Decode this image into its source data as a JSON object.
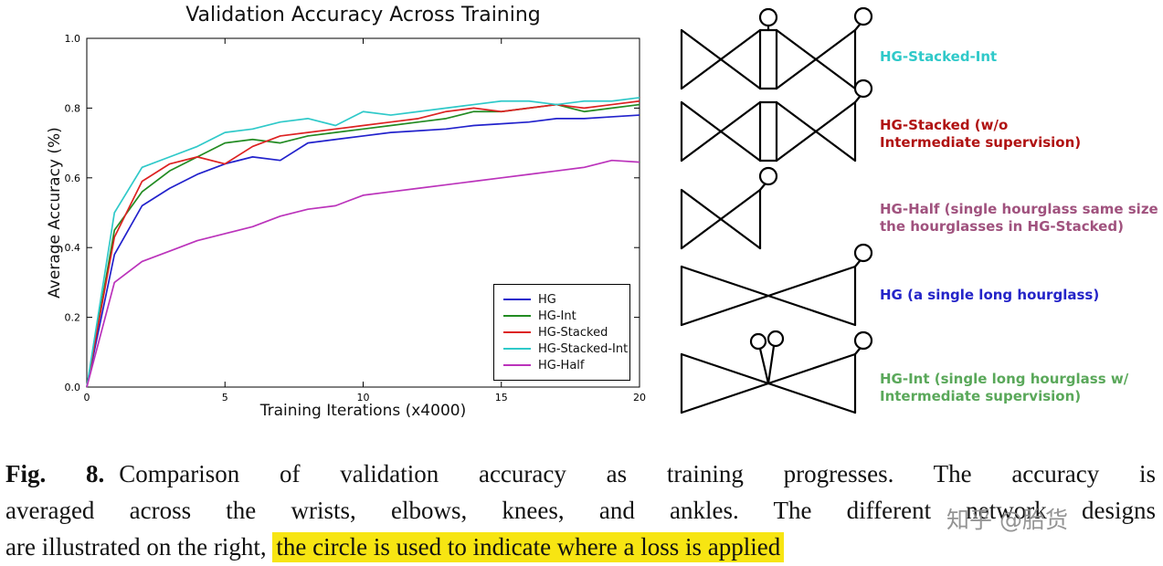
{
  "chart_data": {
    "type": "line",
    "title": "Validation Accuracy Across Training",
    "xlabel": "Training Iterations (x4000)",
    "ylabel": "Average Accuracy (%)",
    "xlim": [
      0,
      20
    ],
    "ylim": [
      0.0,
      1.0
    ],
    "xticks": [
      "0",
      "5",
      "10",
      "15",
      "20"
    ],
    "yticks": [
      "0.0",
      "0.2",
      "0.4",
      "0.6",
      "0.8",
      "1.0"
    ],
    "grid": false,
    "legend_position": "lower right",
    "x": [
      0,
      1,
      2,
      3,
      4,
      5,
      6,
      7,
      8,
      9,
      10,
      11,
      12,
      13,
      14,
      15,
      16,
      17,
      18,
      19,
      20
    ],
    "series": [
      {
        "name": "HG",
        "color": "#2222cc",
        "values": [
          0,
          0.38,
          0.52,
          0.57,
          0.61,
          0.64,
          0.66,
          0.65,
          0.7,
          0.71,
          0.72,
          0.73,
          0.735,
          0.74,
          0.75,
          0.755,
          0.76,
          0.77,
          0.77,
          0.775,
          0.78
        ]
      },
      {
        "name": "HG-Int",
        "color": "#228b22",
        "values": [
          0,
          0.45,
          0.56,
          0.62,
          0.66,
          0.7,
          0.71,
          0.7,
          0.72,
          0.73,
          0.74,
          0.75,
          0.76,
          0.77,
          0.79,
          0.79,
          0.8,
          0.81,
          0.79,
          0.8,
          0.81
        ]
      },
      {
        "name": "HG-Stacked",
        "color": "#dd2222",
        "values": [
          0,
          0.43,
          0.59,
          0.64,
          0.66,
          0.64,
          0.69,
          0.72,
          0.73,
          0.74,
          0.75,
          0.76,
          0.77,
          0.79,
          0.8,
          0.79,
          0.8,
          0.81,
          0.8,
          0.81,
          0.82
        ]
      },
      {
        "name": "HG-Stacked-Int",
        "color": "#2fc9c9",
        "values": [
          0,
          0.5,
          0.63,
          0.66,
          0.69,
          0.73,
          0.74,
          0.76,
          0.77,
          0.75,
          0.79,
          0.78,
          0.79,
          0.8,
          0.81,
          0.82,
          0.82,
          0.81,
          0.82,
          0.82,
          0.83
        ]
      },
      {
        "name": "HG-Half",
        "color": "#bb33bb",
        "values": [
          0,
          0.3,
          0.36,
          0.39,
          0.42,
          0.44,
          0.46,
          0.49,
          0.51,
          0.52,
          0.55,
          0.56,
          0.57,
          0.58,
          0.59,
          0.6,
          0.61,
          0.62,
          0.63,
          0.65,
          0.645
        ]
      }
    ]
  },
  "figure": {
    "diagrams": [
      {
        "name": "HG-Stacked-Int",
        "label_lines": [
          "HG-Stacked-Int"
        ],
        "color": "#2fc9c9"
      },
      {
        "name": "HG-Stacked",
        "label_lines": [
          "HG-Stacked (w/o",
          "Intermediate supervision)"
        ],
        "color": "#b01212"
      },
      {
        "name": "HG-Half",
        "label_lines": [
          "HG-Half (single hourglass same size",
          "the hourglasses in HG-Stacked)"
        ],
        "color": "#a0527e"
      },
      {
        "name": "HG",
        "label_lines": [
          "HG (a single long hourglass)"
        ],
        "color": "#2424c8"
      },
      {
        "name": "HG-Int",
        "label_lines": [
          "HG-Int (single long hourglass w/",
          "Intermediate supervision)"
        ],
        "color": "#5aa85a"
      }
    ]
  },
  "caption": {
    "fig_label": "Fig. 8.",
    "line1": "Comparison of validation accuracy as training progresses. The accuracy is",
    "line2": "averaged across the wrists, elbows, knees, and ankles. The different network designs",
    "line3_prefix": "are illustrated on the right, ",
    "line3_highlight": "the circle is used to indicate where a loss is applied"
  },
  "watermark": "知乎 @胎货"
}
